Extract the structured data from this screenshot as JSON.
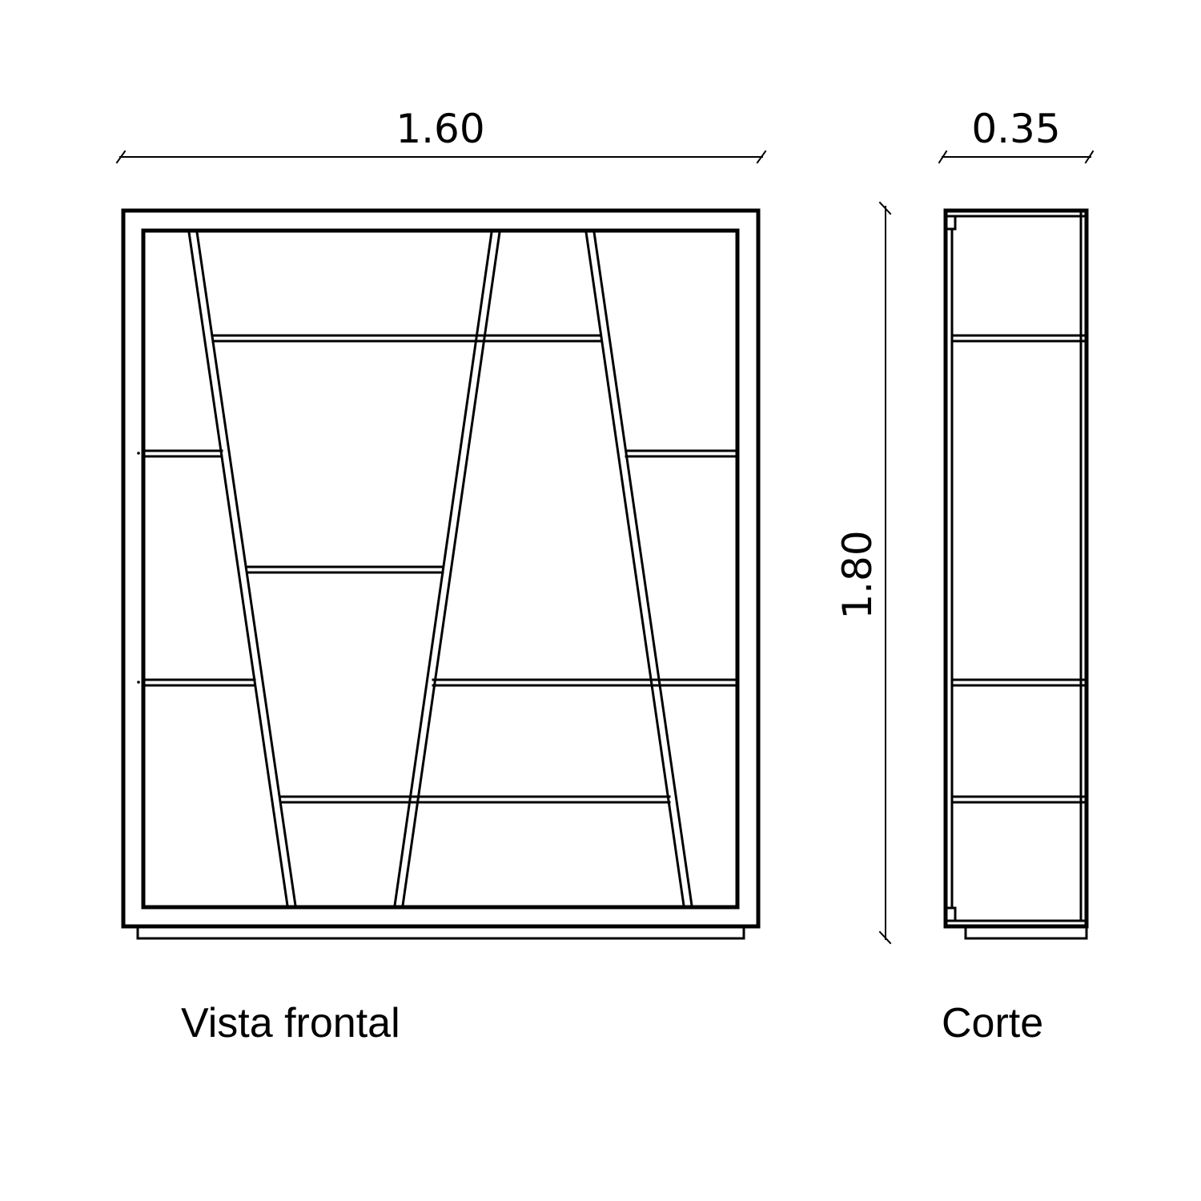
{
  "dimensions": {
    "width": "1.60",
    "depth": "0.35",
    "height": "1.80"
  },
  "captions": {
    "front": "Vista frontal",
    "section": "Corte"
  },
  "colors": {
    "line": "#000000",
    "background": "#ffffff"
  }
}
